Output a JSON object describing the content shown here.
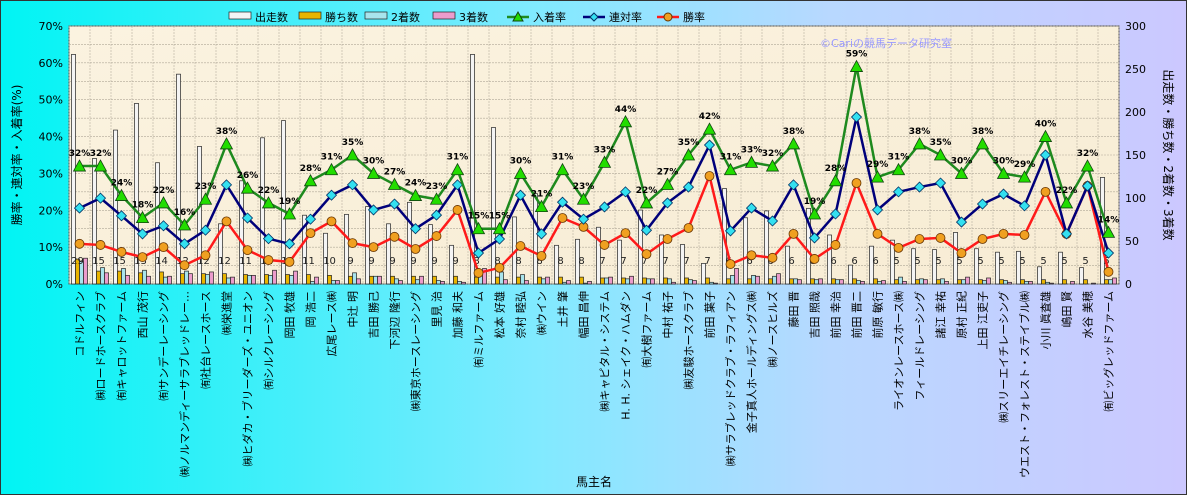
{
  "chart_data": {
    "type": "bar+line",
    "xlabel": "馬主名",
    "ylabel_left": "勝率・連対率・入着率(%)",
    "ylabel_right": "出走数・勝ち数・2着数・3着数",
    "ylim_left": [
      0,
      70
    ],
    "ylim_right": [
      0,
      300
    ],
    "left_ticks": [
      "0%",
      "10%",
      "20%",
      "30%",
      "40%",
      "50%",
      "60%",
      "70%"
    ],
    "right_ticks": [
      "0",
      "50",
      "100",
      "150",
      "200",
      "250",
      "300"
    ],
    "watermark": "©Cariの競馬データ研究室",
    "legend": [
      "出走数",
      "勝ち数",
      "2着数",
      "3着数",
      "入着率",
      "連対率",
      "勝率"
    ],
    "legend_position": "top",
    "grid": true,
    "categories": [
      "コドルフィン",
      "㈱ロードホースクラブ",
      "㈲キャロットファーム",
      "西山 茂行",
      "㈲サンデーレーシング",
      "㈱ノルマンディーサラブレッドレー…",
      "㈲社台レースホース",
      "㈱栄進堂",
      "㈱ヒダカ・ブリーダーズ・ユニオン",
      "㈲シルクレーシング",
      "岡田 牧雄",
      "岡 浩二",
      "広尾レース㈱",
      "中辻 明",
      "吉田 勝己",
      "下河辺 隆行",
      "㈱東京ホースレーシング",
      "里見 治",
      "加藤 和夫",
      "㈲ミルファーム",
      "松本 好雄",
      "奈村 睦弘",
      "㈱ウイン",
      "土井 肇",
      "幅田 昌伸",
      "㈱キャピタル・システム",
      "H. H. シェイク・ハムダン",
      "㈲大樹ファーム",
      "中村 祐子",
      "㈱友駿ホースクラブ",
      "前田 葉子",
      "㈱サラブレッドクラブ・ラフィアン",
      "金子真人ホールディングス㈱",
      "㈱ノースヒルズ",
      "藤田 晋",
      "吉田 照哉",
      "前田 幸治",
      "前田 晋二",
      "前原 敏行",
      "ライオンレースホース㈱",
      "フィールドレーシング",
      "諸江 幸祐",
      "原村 正紀",
      "上田 江吏子",
      "㈱スリーエイチレーシング",
      "ウエスト・フォレスト・ステイブル㈱",
      "小川 眞査雄",
      "嶋田 賢",
      "水谷 美穂",
      "㈲ビッグレッドファーム"
    ],
    "series": [
      {
        "name": "出走数",
        "axis": "right",
        "type": "bar",
        "color": "#f4f4f4",
        "values": [
          267,
          146,
          179,
          210,
          141,
          244,
          160,
          70,
          120,
          170,
          190,
          80,
          59,
          81,
          90,
          70,
          95,
          69,
          45,
          267,
          182,
          78,
          105,
          45,
          52,
          66,
          51,
          86,
          57,
          46,
          24,
          111,
          77,
          85,
          44,
          88,
          57,
          22,
          44,
          51,
          41,
          40,
          60,
          41,
          37,
          38,
          20,
          37,
          19,
          124
        ]
      },
      {
        "name": "勝ち数",
        "axis": "right",
        "type": "bar",
        "color": "#e8b400",
        "values": [
          29,
          15,
          15,
          13,
          14,
          12,
          12,
          12,
          11,
          11,
          11,
          11,
          10,
          9,
          9,
          9,
          9,
          9,
          9,
          8,
          8,
          8,
          8,
          8,
          8,
          7,
          7,
          7,
          7,
          7,
          7,
          6,
          6,
          6,
          6,
          6,
          6,
          6,
          6,
          5,
          5,
          5,
          5,
          5,
          5,
          5,
          5,
          5,
          5,
          5
        ]
      },
      {
        "name": "2着数",
        "axis": "right",
        "type": "bar",
        "color": "#a8e4ec",
        "values": [
          26,
          19,
          18,
          16,
          8,
          15,
          11,
          7,
          10,
          10,
          10,
          3,
          4,
          13,
          9,
          6,
          5,
          4,
          3,
          14,
          14,
          11,
          6,
          2,
          1,
          7,
          6,
          6,
          6,
          5,
          2,
          10,
          10,
          9,
          6,
          5,
          5,
          4,
          3,
          8,
          6,
          6,
          5,
          4,
          4,
          3,
          2,
          0,
          0,
          5
        ]
      },
      {
        "name": "3着数",
        "axis": "right",
        "type": "bar",
        "color": "#ec9ccc",
        "values": [
          30,
          13,
          10,
          9,
          9,
          12,
          14,
          8,
          10,
          16,
          15,
          8,
          4,
          6,
          9,
          4,
          9,
          3,
          2,
          18,
          5,
          4,
          8,
          4,
          3,
          8,
          9,
          6,
          2,
          4,
          1,
          18,
          9,
          12,
          5,
          6,
          5,
          3,
          4,
          3,
          5,
          3,
          8,
          7,
          2,
          3,
          1,
          3,
          1,
          7
        ]
      },
      {
        "name": "入着率",
        "axis": "left",
        "type": "line",
        "color": "#1e8a1e",
        "marker": "triangle",
        "values": [
          32,
          32,
          24,
          18,
          22,
          16,
          23,
          38,
          26,
          22,
          19,
          28,
          31,
          35,
          30,
          27,
          24,
          23,
          31,
          15,
          15,
          30,
          21,
          31,
          23,
          33,
          44,
          22,
          27,
          35,
          42,
          31,
          33,
          32,
          38,
          19,
          28,
          59,
          29,
          31,
          38,
          35,
          30,
          38,
          30,
          29,
          40,
          22,
          32,
          14
        ],
        "labels": [
          "32%",
          "32%",
          "24%",
          "18%",
          "22%",
          "16%",
          "23%",
          "38%",
          "26%",
          "22%",
          "19%",
          "28%",
          "31%",
          "35%",
          "30%",
          "27%",
          "24%",
          "23%",
          "31%",
          "15%",
          "15%",
          "30%",
          "21%",
          "31%",
          "23%",
          "33%",
          "44%",
          "22%",
          "27%",
          "35%",
          "42%",
          "31%",
          "33%",
          "32%",
          "38%",
          "19%",
          "28%",
          "59%",
          "29%",
          "31%",
          "38%",
          "35%",
          "30%",
          "38%",
          "30%",
          "29%",
          "40%",
          "22%",
          "32%",
          "14%"
        ]
      },
      {
        "name": "連対率",
        "axis": "left",
        "type": "line",
        "color": "#00007a",
        "marker": "diamond",
        "values": [
          20.6,
          23.3,
          18.5,
          13.6,
          15.8,
          10.9,
          14.6,
          26.9,
          17.9,
          12.3,
          10.9,
          17.6,
          24.1,
          26.9,
          20.1,
          21.7,
          15.0,
          18.7,
          26.9,
          8.4,
          12.2,
          24.1,
          13.6,
          22.2,
          17.6,
          20.9,
          25.0,
          14.6,
          22.0,
          26.3,
          37.7,
          14.4,
          20.6,
          17.1,
          26.9,
          12.5,
          19.0,
          45.3,
          20.1,
          25.0,
          26.3,
          27.4,
          16.8,
          21.7,
          24.4,
          21.2,
          35.0,
          13.6,
          26.6,
          8.4
        ]
      },
      {
        "name": "勝率",
        "axis": "left",
        "type": "line",
        "color": "#ff1a1a",
        "marker": "circle",
        "values": [
          10.9,
          10.6,
          8.7,
          7.3,
          10.0,
          5.1,
          7.8,
          17.0,
          9.2,
          6.5,
          6.0,
          13.8,
          17.0,
          11.1,
          10.0,
          12.8,
          9.5,
          13.0,
          20.1,
          3.0,
          4.4,
          10.3,
          7.6,
          17.9,
          15.5,
          10.6,
          13.8,
          8.1,
          12.2,
          15.2,
          29.3,
          5.4,
          7.8,
          7.1,
          13.6,
          6.8,
          10.6,
          27.4,
          13.6,
          9.8,
          12.2,
          12.5,
          8.4,
          12.2,
          13.6,
          13.3,
          25.0,
          13.6,
          26.6,
          3.3
        ]
      }
    ]
  }
}
